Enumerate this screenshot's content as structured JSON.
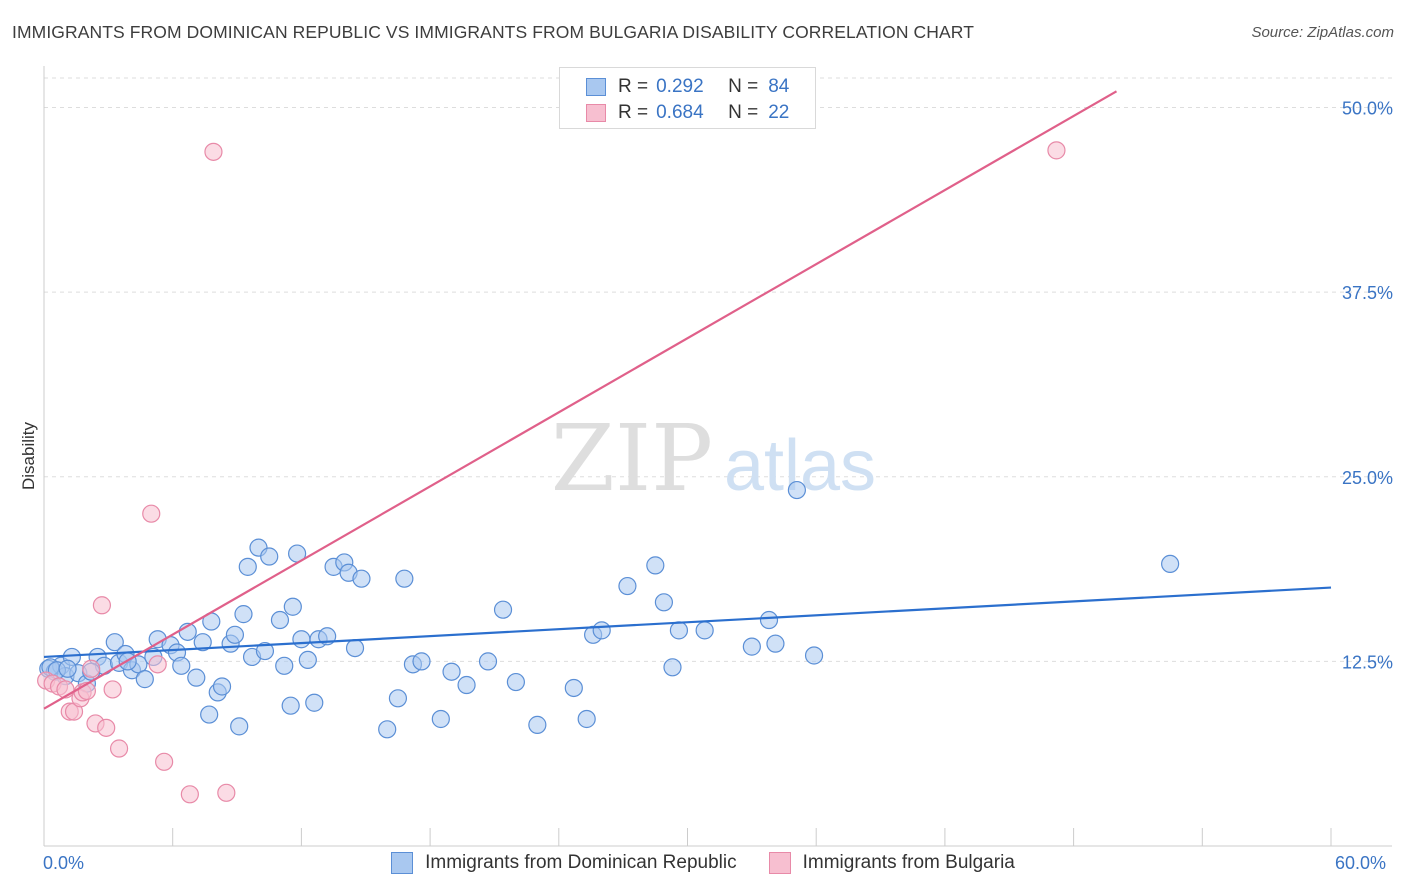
{
  "title": "IMMIGRANTS FROM DOMINICAN REPUBLIC VS IMMIGRANTS FROM BULGARIA DISABILITY CORRELATION CHART",
  "source": "Source: ZipAtlas.com",
  "watermark": {
    "zip": "ZIP",
    "atlas": "atlas"
  },
  "legend": {
    "r_label": "R =",
    "n_label": "N =",
    "series1": {
      "r": "0.292",
      "n": "84"
    },
    "series2": {
      "r": "0.684",
      "n": "22"
    }
  },
  "colors": {
    "blue_fill": "#a9c8f0",
    "blue_stroke": "#5b8fd6",
    "blue_line": "#2b6fce",
    "pink_fill": "#f7bfd0",
    "pink_stroke": "#e88aa8",
    "pink_line": "#e0608a",
    "tick_text": "#3a74c4",
    "grid": "#dddddd"
  },
  "chart_data": {
    "type": "scatter",
    "title": "IMMIGRANTS FROM DOMINICAN REPUBLIC VS IMMIGRANTS FROM BULGARIA DISABILITY CORRELATION CHART",
    "xlabel": "",
    "ylabel": "Disability",
    "xlim": [
      0,
      60
    ],
    "ylim": [
      0,
      52
    ],
    "x_tick_labels": {
      "min": "0.0%",
      "max": "60.0%"
    },
    "y_ticks": [
      12.5,
      25.0,
      37.5,
      50.0
    ],
    "y_tick_labels": [
      "12.5%",
      "25.0%",
      "37.5%",
      "50.0%"
    ],
    "series": [
      {
        "name": "Immigrants from Dominican Republic",
        "trend": {
          "x": [
            0,
            60
          ],
          "y": [
            12.8,
            17.5
          ]
        },
        "points": [
          [
            0.2,
            12.0
          ],
          [
            0.5,
            11.8
          ],
          [
            0.8,
            12.2
          ],
          [
            1.0,
            11.5
          ],
          [
            1.3,
            12.8
          ],
          [
            1.6,
            11.7
          ],
          [
            2.0,
            11.0
          ],
          [
            2.5,
            12.8
          ],
          [
            2.8,
            12.2
          ],
          [
            3.3,
            13.8
          ],
          [
            3.5,
            12.4
          ],
          [
            3.8,
            13.0
          ],
          [
            4.1,
            11.9
          ],
          [
            4.4,
            12.3
          ],
          [
            4.7,
            11.3
          ],
          [
            5.1,
            12.8
          ],
          [
            5.3,
            14.0
          ],
          [
            5.9,
            13.6
          ],
          [
            6.2,
            13.1
          ],
          [
            6.4,
            12.2
          ],
          [
            6.7,
            14.5
          ],
          [
            7.1,
            11.4
          ],
          [
            7.4,
            13.8
          ],
          [
            7.7,
            8.9
          ],
          [
            7.8,
            15.2
          ],
          [
            8.1,
            10.4
          ],
          [
            8.3,
            10.8
          ],
          [
            8.7,
            13.7
          ],
          [
            8.9,
            14.3
          ],
          [
            9.1,
            8.1
          ],
          [
            9.3,
            15.7
          ],
          [
            9.5,
            18.9
          ],
          [
            9.7,
            12.8
          ],
          [
            10.0,
            20.2
          ],
          [
            10.3,
            13.2
          ],
          [
            10.5,
            19.6
          ],
          [
            11.0,
            15.3
          ],
          [
            11.2,
            12.2
          ],
          [
            11.5,
            9.5
          ],
          [
            11.6,
            16.2
          ],
          [
            11.8,
            19.8
          ],
          [
            12.0,
            14.0
          ],
          [
            12.3,
            12.6
          ],
          [
            12.6,
            9.7
          ],
          [
            12.8,
            14.0
          ],
          [
            13.2,
            14.2
          ],
          [
            13.5,
            18.9
          ],
          [
            14.0,
            19.2
          ],
          [
            14.2,
            18.5
          ],
          [
            14.5,
            13.4
          ],
          [
            14.8,
            18.1
          ],
          [
            16.0,
            7.9
          ],
          [
            16.5,
            10.0
          ],
          [
            16.8,
            18.1
          ],
          [
            17.2,
            12.3
          ],
          [
            17.6,
            12.5
          ],
          [
            18.5,
            8.6
          ],
          [
            19.0,
            11.8
          ],
          [
            19.7,
            10.9
          ],
          [
            20.7,
            12.5
          ],
          [
            21.4,
            16.0
          ],
          [
            22.0,
            11.1
          ],
          [
            23.0,
            8.2
          ],
          [
            24.7,
            10.7
          ],
          [
            25.3,
            8.6
          ],
          [
            25.6,
            14.3
          ],
          [
            26.0,
            14.6
          ],
          [
            27.2,
            17.6
          ],
          [
            28.5,
            19.0
          ],
          [
            28.9,
            16.5
          ],
          [
            29.3,
            12.1
          ],
          [
            29.6,
            14.6
          ],
          [
            30.8,
            14.6
          ],
          [
            33.0,
            13.5
          ],
          [
            33.8,
            15.3
          ],
          [
            34.1,
            13.7
          ],
          [
            35.1,
            24.1
          ],
          [
            35.9,
            12.9
          ],
          [
            52.5,
            19.1
          ],
          [
            0.3,
            12.1
          ],
          [
            0.6,
            11.9
          ],
          [
            1.1,
            12.0
          ],
          [
            2.2,
            11.8
          ],
          [
            3.9,
            12.5
          ]
        ]
      },
      {
        "name": "Immigrants from Bulgaria",
        "trend": {
          "x": [
            0,
            50
          ],
          "y": [
            9.3,
            51.1
          ]
        },
        "points": [
          [
            0.1,
            11.2
          ],
          [
            0.4,
            11.0
          ],
          [
            0.7,
            10.8
          ],
          [
            1.0,
            10.6
          ],
          [
            1.2,
            9.1
          ],
          [
            1.4,
            9.1
          ],
          [
            1.7,
            10.0
          ],
          [
            1.8,
            10.4
          ],
          [
            2.2,
            12.0
          ],
          [
            2.4,
            8.3
          ],
          [
            2.7,
            16.3
          ],
          [
            2.9,
            8.0
          ],
          [
            3.2,
            10.6
          ],
          [
            3.5,
            6.6
          ],
          [
            5.3,
            12.3
          ],
          [
            5.0,
            22.5
          ],
          [
            5.6,
            5.7
          ],
          [
            6.8,
            3.5
          ],
          [
            7.9,
            47.0
          ],
          [
            8.5,
            3.6
          ],
          [
            47.2,
            47.1
          ],
          [
            2.0,
            10.5
          ]
        ]
      }
    ]
  }
}
